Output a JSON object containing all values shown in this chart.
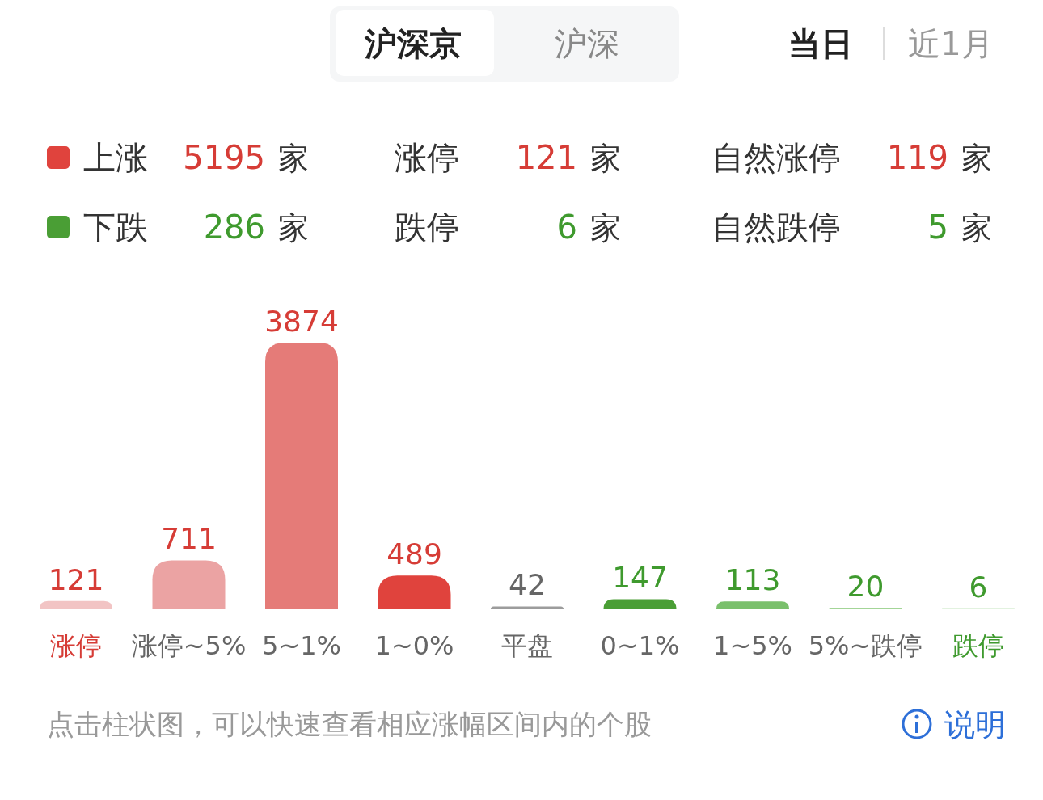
{
  "chart_data": {
    "type": "bar",
    "categories": [
      "涨停",
      "涨停~5%",
      "5~1%",
      "1~0%",
      "平盘",
      "0~1%",
      "1~5%",
      "5%~跌停",
      "跌停"
    ],
    "values": [
      121,
      711,
      3874,
      489,
      42,
      147,
      113,
      20,
      6
    ],
    "colors": [
      "#f2c4c4",
      "#eba3a3",
      "#e57b78",
      "#e0433d",
      "#9c9c9c",
      "#4a9e35",
      "#7ac06c",
      "#a3d597",
      "#c6e5bf"
    ],
    "data_labels": true,
    "annotations": [
      "沪深京",
      "沪深",
      "当日",
      "近1月",
      "上涨",
      "5195",
      "家",
      "涨停",
      "121",
      "家",
      "自然涨停",
      "119",
      "家",
      "下跌",
      "286",
      "家",
      "跌停",
      "6",
      "家",
      "自然跌停",
      "5",
      "家",
      "点击柱状图，可以快速查看相应涨幅区间内的个股",
      "说明"
    ]
  }
}
